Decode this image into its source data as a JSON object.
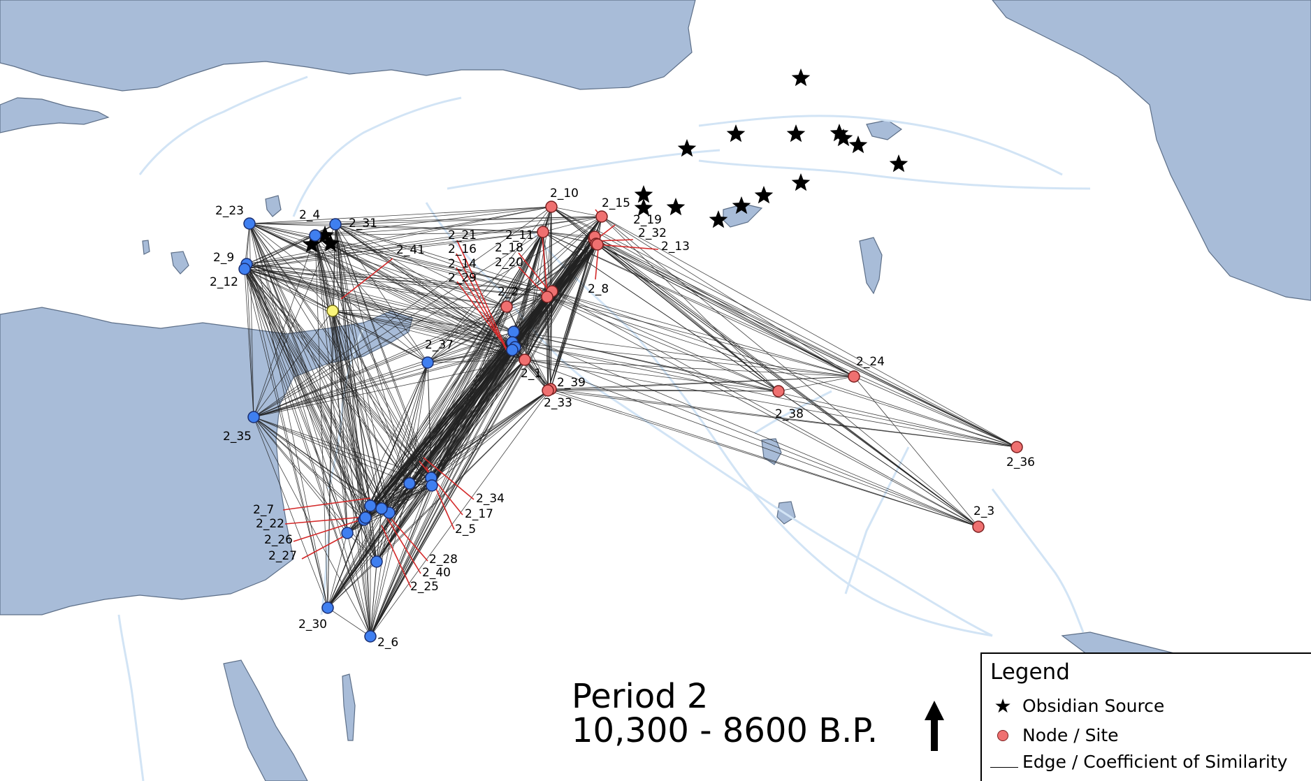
{
  "title": {
    "period": "Period 2",
    "dates": "10,300 - 8600 B.P."
  },
  "legend": {
    "title": "Legend",
    "items": [
      {
        "symbol": "star-icon",
        "label": "Obsidian Source"
      },
      {
        "symbol": "node-icon",
        "label": "Node / Site"
      },
      {
        "symbol": "edge-line",
        "label": "Edge / Coefficient of Similarity"
      }
    ]
  },
  "colors": {
    "water": "#a8bcd8",
    "river": "#d2e4f5",
    "land": "#ffffff",
    "node_red": "#ef7070",
    "node_blue": "#3f7ff0",
    "node_yellow": "#faf57a",
    "edge": "#222222",
    "leader": "#d42a2a"
  },
  "labels": [
    "2_23",
    "2_4",
    "2_31",
    "2_9",
    "2_12",
    "2_41",
    "2_37",
    "2_35",
    "2_7",
    "2_22",
    "2_26",
    "2_27",
    "2_30",
    "2_6",
    "2_34",
    "2_17",
    "2_5",
    "2_28",
    "2_40",
    "2_25",
    "2_10",
    "2_15",
    "2_19",
    "2_32",
    "2_13",
    "2_11",
    "2_21",
    "2_16",
    "2_14",
    "2_29",
    "2_18",
    "2_20",
    "2_2",
    "2_8",
    "2_1",
    "2_39",
    "2_33",
    "2_24",
    "2_38",
    "2_36",
    "2_3"
  ]
}
